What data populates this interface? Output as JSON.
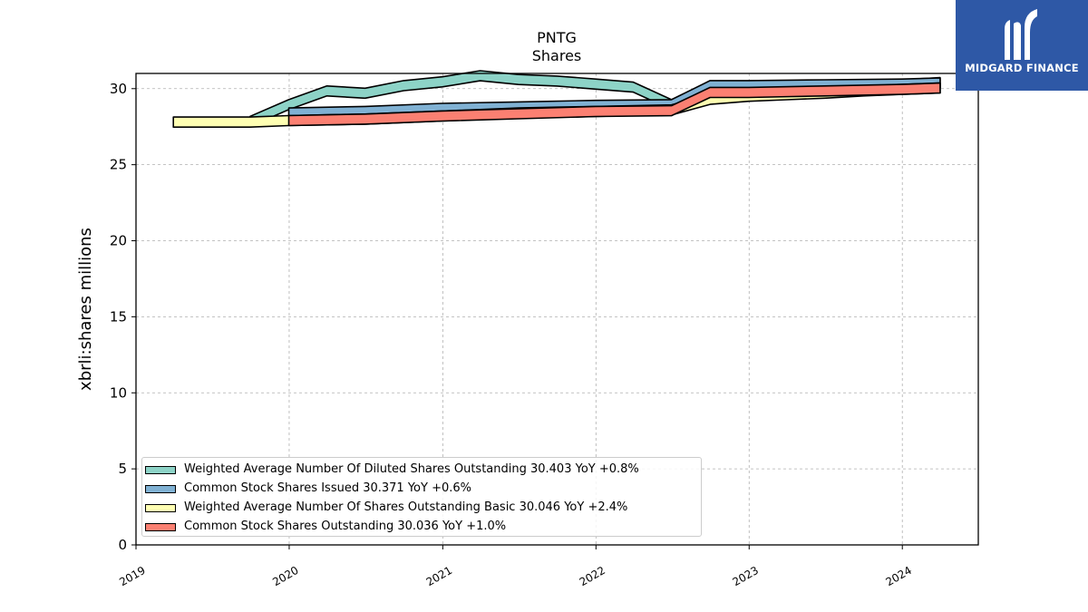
{
  "brand": {
    "name": "MIDGARD FINANCE",
    "logo_icon": "midgard-m-logo-icon",
    "background_color": "#2e58a6"
  },
  "chart_data": {
    "type": "area",
    "title": "PNTG",
    "subtitle": "Shares",
    "xlabel": "",
    "ylabel": "xbrli:shares millions",
    "xlim": [
      "2019-01-01",
      "2024-06-30"
    ],
    "ylim": [
      0,
      31
    ],
    "yticks": [
      0,
      5,
      10,
      15,
      20,
      25,
      30
    ],
    "xticks": [
      "2019",
      "2020",
      "2021",
      "2022",
      "2023",
      "2024"
    ],
    "grid": true,
    "legend_placement": "lower-left",
    "series": [
      {
        "name": "Weighted Average Number Of Diluted Shares Outstanding",
        "legend": "Weighted Average Number Of Diluted Shares Outstanding  30.403 YoY +0.8%",
        "color": "#8dd3c7",
        "x": [
          "2019-09-30",
          "2019-12-31",
          "2020-03-31",
          "2020-06-30",
          "2020-09-30",
          "2020-12-31",
          "2021-03-31",
          "2021-06-30",
          "2021-09-30",
          "2021-12-31",
          "2022-03-31",
          "2022-06-30",
          "2022-09-30",
          "2022-12-31",
          "2023-03-31",
          "2023-06-30",
          "2023-09-30",
          "2023-12-31",
          "2024-03-31"
        ],
        "values": [
          27.85,
          28.95,
          29.85,
          29.7,
          30.2,
          30.45,
          30.85,
          30.6,
          30.5,
          30.3,
          30.1,
          28.95,
          29.9,
          29.9,
          30.0,
          30.05,
          30.15,
          30.25,
          30.4
        ]
      },
      {
        "name": "Common Stock Shares Issued",
        "legend": "Common Stock Shares Issued  30.371 YoY +0.6%",
        "color": "#80b1d3",
        "x": [
          "2019-12-31",
          "2020-06-30",
          "2020-12-31",
          "2021-06-30",
          "2021-12-31",
          "2022-06-30",
          "2022-09-30",
          "2022-12-31",
          "2023-06-30",
          "2023-12-31",
          "2024-03-31"
        ],
        "values": [
          28.4,
          28.5,
          28.7,
          28.8,
          28.9,
          28.95,
          30.2,
          30.2,
          30.25,
          30.3,
          30.37
        ]
      },
      {
        "name": "Weighted Average Number Of Shares Outstanding Basic",
        "legend": "Weighted Average Number Of Shares Outstanding Basic  30.046 YoY +2.4%",
        "color": "#ffffb3",
        "x": [
          "2019-03-31",
          "2019-09-30",
          "2019-12-31",
          "2020-03-31",
          "2020-06-30",
          "2020-09-30",
          "2020-12-31",
          "2021-03-31",
          "2021-06-30",
          "2021-09-30",
          "2021-12-31",
          "2022-03-31",
          "2022-06-30",
          "2022-09-30",
          "2022-12-31",
          "2023-03-31",
          "2023-06-30",
          "2023-09-30",
          "2023-12-31",
          "2024-03-31"
        ],
        "values": [
          27.8,
          27.8,
          27.9,
          27.95,
          28.0,
          28.1,
          28.2,
          28.3,
          28.4,
          28.45,
          28.5,
          28.55,
          28.6,
          29.3,
          29.5,
          29.6,
          29.7,
          29.85,
          29.95,
          30.05
        ]
      },
      {
        "name": "Common Stock Shares Outstanding",
        "legend": "Common Stock Shares Outstanding  30.036 YoY +1.0%",
        "color": "#fb8072",
        "x": [
          "2019-12-31",
          "2020-06-30",
          "2020-12-31",
          "2021-06-30",
          "2021-12-31",
          "2022-06-30",
          "2022-09-30",
          "2022-12-31",
          "2023-06-30",
          "2023-12-31",
          "2024-03-31"
        ],
        "values": [
          27.9,
          28.0,
          28.2,
          28.35,
          28.5,
          28.55,
          29.75,
          29.75,
          29.85,
          29.95,
          30.04
        ]
      }
    ]
  }
}
